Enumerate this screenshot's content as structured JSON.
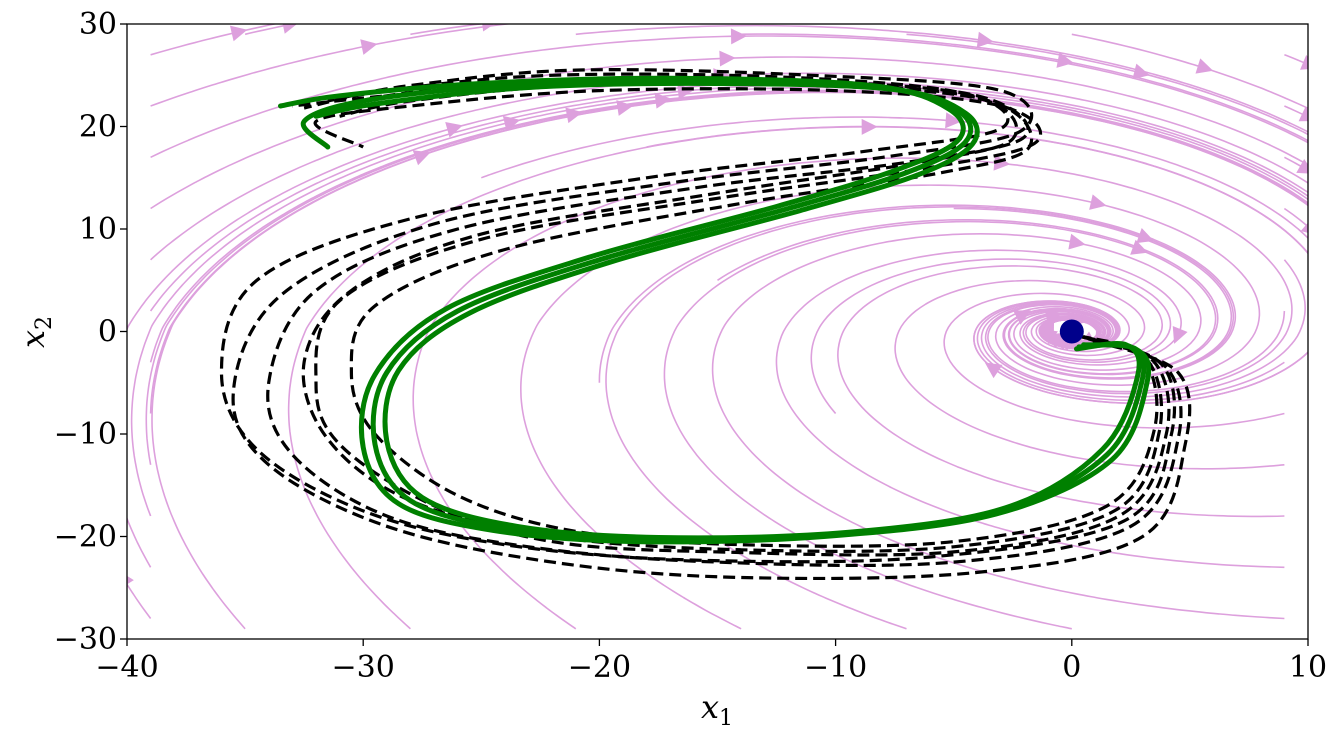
{
  "chart_data": {
    "type": "line",
    "title": "",
    "xlabel": "x",
    "xlabel_sub": "1",
    "ylabel": "x",
    "ylabel_sub": "2",
    "xlim": [
      -40,
      10
    ],
    "ylim": [
      -30,
      30
    ],
    "xticks": [
      -40,
      -30,
      -20,
      -10,
      0,
      10
    ],
    "xtick_labels": [
      "−40",
      "−30",
      "−20",
      "−10",
      "0",
      "10"
    ],
    "yticks": [
      -30,
      -20,
      -10,
      0,
      10,
      20,
      30
    ],
    "ytick_labels": [
      "−30",
      "−20",
      "−10",
      "0",
      "10",
      "20",
      "30"
    ],
    "grid": false,
    "legend": "none",
    "colors": {
      "streamlines": "#dda0dd",
      "dashed_trajectories": "#000000",
      "solid_trajectory": "#008000",
      "equilibrium_marker": "#00008b"
    },
    "equilibrium_point": {
      "x": 0,
      "y": 0
    },
    "dashed_trajectories": [
      {
        "x": [
          0.5,
          3.5,
          4.0,
          2.0,
          -5,
          -15,
          -22,
          -27,
          -31,
          -32,
          -31,
          -25,
          -15,
          -6,
          -1.5,
          -3,
          -10,
          -20,
          -28,
          -32,
          -30
        ],
        "y": [
          -0.5,
          -3,
          -10,
          -18,
          -21.5,
          -21.5,
          -20.5,
          -17,
          -11,
          -5,
          3,
          9,
          13,
          16,
          18.5,
          22,
          23.5,
          23.5,
          22,
          20.5,
          18
        ]
      },
      {
        "x": [
          0.7,
          4.0,
          4.5,
          2.5,
          -5,
          -15,
          -23,
          -29,
          -33,
          -34,
          -32,
          -26,
          -16,
          -7,
          -2,
          -4,
          -12,
          -22,
          -29,
          -32
        ],
        "y": [
          -0.7,
          -3.5,
          -10.5,
          -19,
          -22.5,
          -22.5,
          -21,
          -18,
          -12,
          -5,
          4,
          10,
          14,
          16.5,
          19,
          23,
          24.5,
          24.5,
          23,
          21
        ]
      },
      {
        "x": [
          0.3,
          3.0,
          3.5,
          1.5,
          -5,
          -14,
          -21,
          -26,
          -29.5,
          -30.5,
          -29.5,
          -24,
          -14,
          -5.5,
          -1.8,
          -3.5,
          -11,
          -21,
          -28,
          -31
        ],
        "y": [
          -0.4,
          -2.5,
          -9.5,
          -17,
          -20.5,
          -20.8,
          -19.5,
          -16,
          -10,
          -4,
          2.5,
          8,
          12.5,
          15.5,
          18,
          22.5,
          24,
          24,
          22.5,
          21
        ]
      },
      {
        "x": [
          0.9,
          4.5,
          4.8,
          3.0,
          -4,
          -14,
          -22,
          -29,
          -34,
          -35.5,
          -33.5,
          -27,
          -17,
          -8,
          -2.2,
          -3,
          -11,
          -21,
          -28,
          -31.5
        ],
        "y": [
          -0.9,
          -4,
          -11,
          -20,
          -23.5,
          -24,
          -22.5,
          -19,
          -13,
          -6,
          3.5,
          10.5,
          14.5,
          17,
          19.5,
          23.5,
          25,
          25.5,
          24,
          22.5
        ]
      },
      {
        "x": [
          0.6,
          3.8,
          4.2,
          2.2,
          -6,
          -16,
          -24,
          -30,
          -34.5,
          -36,
          -34.5,
          -28,
          -18,
          -9,
          -3,
          -4.5,
          -12,
          -22,
          -29,
          -32.5
        ],
        "y": [
          -0.6,
          -3.2,
          -10.2,
          -18.5,
          -22,
          -22.3,
          -20.8,
          -17.5,
          -11.5,
          -4,
          5,
          11,
          15,
          17.5,
          19.8,
          23.2,
          24.8,
          25,
          23.5,
          21.8
        ]
      },
      {
        "x": [
          0.4,
          3.2,
          3.7,
          1.8,
          -5,
          -14,
          -22,
          -28,
          -31.5,
          -32.5,
          -30.5,
          -25,
          -15,
          -6.5,
          -2.5,
          -4,
          -12,
          -22,
          -29,
          -33
        ],
        "y": [
          -0.5,
          -2.8,
          -9.8,
          -17.5,
          -21,
          -21.3,
          -20,
          -16.5,
          -10.5,
          -3,
          4,
          9.5,
          13.5,
          16.5,
          18.8,
          22.8,
          24.3,
          24.3,
          23,
          22
        ]
      }
    ],
    "solid_trajectories": [
      {
        "x": [
          0.3,
          2.5,
          3.0,
          1.5,
          -3,
          -10,
          -18,
          -24,
          -28,
          -29.5,
          -29,
          -26,
          -20,
          -12,
          -7,
          -4.5,
          -4.8,
          -8,
          -16,
          -24,
          -30,
          -32.5,
          -31.5
        ],
        "y": [
          -1.5,
          -1.5,
          -4.5,
          -12,
          -17.5,
          -19.8,
          -20.3,
          -19.2,
          -16.5,
          -11,
          -4,
          2,
          7,
          12,
          15.5,
          18.5,
          21.5,
          23.8,
          24.5,
          24,
          22.5,
          20.5,
          18
        ]
      },
      {
        "x": [
          0.5,
          2.7,
          3.2,
          1.7,
          -3.2,
          -10.5,
          -18.5,
          -24.5,
          -28.5,
          -30,
          -29.5,
          -26.5,
          -20.5,
          -12.5,
          -7.5,
          -4.8,
          -5.2,
          -8.5,
          -17,
          -25,
          -31,
          -33.5
        ],
        "y": [
          -1.3,
          -1.7,
          -4.8,
          -12.5,
          -17.8,
          -20,
          -20.5,
          -19.4,
          -16.8,
          -11.3,
          -4.2,
          2.2,
          7.2,
          12.2,
          15.7,
          18.7,
          21.7,
          24,
          24.7,
          24.2,
          23,
          22
        ]
      },
      {
        "x": [
          0.2,
          2.3,
          2.8,
          1.3,
          -2.8,
          -9.5,
          -17.5,
          -23.5,
          -27.5,
          -29,
          -28.5,
          -25.5,
          -19.5,
          -11.5,
          -6.5,
          -4.2,
          -4.5,
          -7.5,
          -15,
          -23,
          -29.5,
          -32
        ],
        "y": [
          -1.7,
          -1.3,
          -4.2,
          -11.5,
          -17.2,
          -19.6,
          -20.1,
          -19,
          -16.2,
          -10.7,
          -3.8,
          1.8,
          6.8,
          11.8,
          15.3,
          18.3,
          21.3,
          23.6,
          24.2,
          23.8,
          22.2,
          21
        ]
      }
    ]
  }
}
